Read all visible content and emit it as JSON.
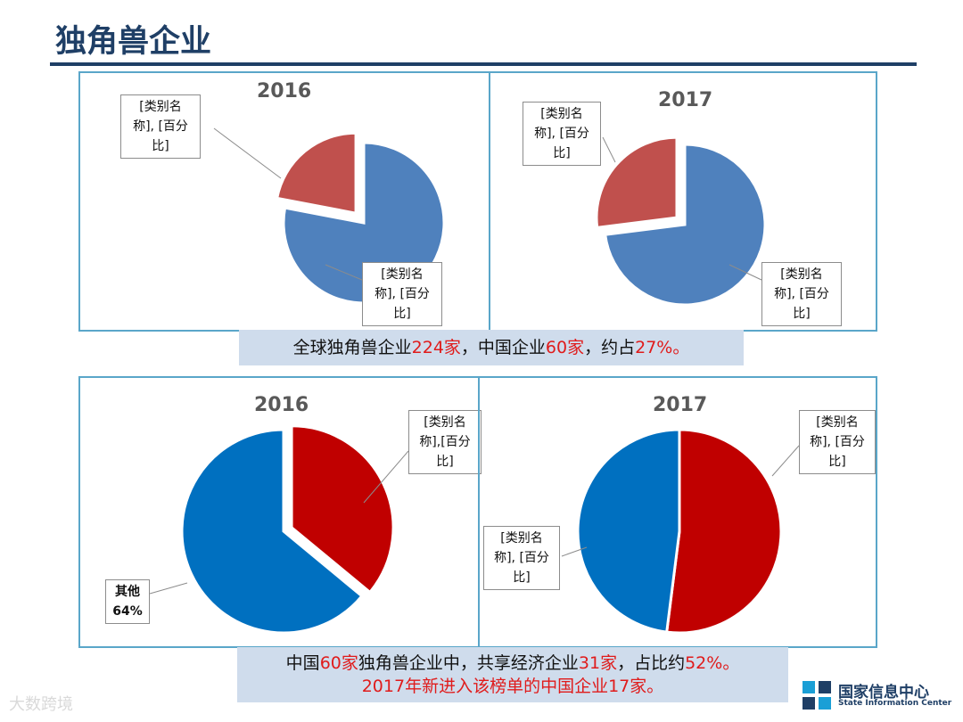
{
  "page": {
    "title": "独角兽企业",
    "watermark_bottom_left": "大数跨境",
    "logo": {
      "cn": "国家信息中心",
      "en": "State Information Center"
    }
  },
  "summaries": {
    "top": [
      "全球独角兽企业",
      "224家",
      "，中国企业",
      "60家",
      "，约占",
      "27%。"
    ],
    "bottom_line1": [
      "中国",
      "60家",
      "独角兽企业中，共享经济企业",
      "31家",
      "，占比约",
      "52%。"
    ],
    "bottom_line2": [
      "2017年",
      "新进入该榜单的中国企业",
      "17家。"
    ]
  },
  "chart_data": [
    {
      "type": "pie",
      "title": "2016",
      "slices": [
        {
          "label": "[类别名称], [百分比]",
          "value": 78,
          "color": "#4f81bd"
        },
        {
          "label": "[类别名称], [百分比]",
          "value": 22,
          "color": "#c0504d",
          "exploded": true
        }
      ]
    },
    {
      "type": "pie",
      "title": "2017",
      "slices": [
        {
          "label": "[类别名称], [百分比]",
          "value": 73,
          "color": "#4f81bd"
        },
        {
          "label": "[类别名称], [百分比]",
          "value": 27,
          "color": "#c0504d",
          "exploded": true
        }
      ]
    },
    {
      "type": "pie",
      "title": "2016",
      "slices": [
        {
          "label": "[类别名称],[百分比]",
          "value": 36,
          "color": "#c00000",
          "exploded": true
        },
        {
          "label": "其他 64%",
          "value": 64,
          "color": "#0070c0"
        }
      ]
    },
    {
      "type": "pie",
      "title": "2017",
      "slices": [
        {
          "label": "[类别名称], [百分比]",
          "value": 52,
          "color": "#c00000"
        },
        {
          "label": "[类别名称], [百分比]",
          "value": 48,
          "color": "#0070c0"
        }
      ]
    }
  ],
  "callouts": {
    "c1_top": [
      "[类别名",
      "称], [百分",
      "比]"
    ],
    "c1_bottom": [
      "[类别名",
      "称], [百分",
      "比]"
    ],
    "c2_top": [
      "[类别名",
      "称], [百分",
      "比]"
    ],
    "c2_bottom": [
      "[类别名",
      "称], [百分",
      "比]"
    ],
    "c3_top": [
      "[类别名",
      "称],[百分",
      "比]"
    ],
    "c3_bottom": [
      "其他",
      "64%"
    ],
    "c4_top": [
      "[类别名",
      "称], [百分",
      "比]"
    ],
    "c4_bottom": [
      "[类别名",
      "称], [百分",
      "比]"
    ]
  }
}
